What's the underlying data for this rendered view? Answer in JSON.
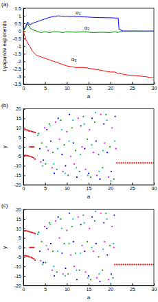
{
  "chart_data": [
    {
      "type": "line",
      "title": "(a)",
      "x_label": "a",
      "y_label": "Lyapunov exponents",
      "xlim": [
        0,
        30
      ],
      "ylim": [
        -3.5,
        1.5
      ],
      "xticks": [
        0,
        5,
        10,
        15,
        20,
        25,
        30
      ],
      "yticks": [
        -3.5,
        -3,
        -2.5,
        -2,
        -1.5,
        -1,
        -0.5,
        0,
        0.5,
        1,
        1.5
      ],
      "x": [
        0,
        0.5,
        1,
        1.5,
        2,
        3,
        4,
        5,
        6,
        7,
        8,
        9,
        10,
        12,
        14,
        16,
        18,
        20,
        21,
        21.8,
        22,
        23,
        24,
        26,
        28,
        30
      ],
      "series": [
        {
          "color": "#0000ff",
          "values": [
            0,
            0.3,
            0.6,
            0.4,
            0.5,
            0.6,
            0.7,
            0.8,
            0.9,
            0.95,
            1.0,
            0.98,
            0.97,
            0.95,
            0.93,
            0.9,
            0.88,
            0.87,
            0.86,
            0.85,
            0.1,
            0.0,
            0.0,
            0.0,
            0.0,
            0.0
          ]
        },
        {
          "color": "#008000",
          "values": [
            0,
            0.2,
            0.5,
            0.2,
            0.1,
            0.0,
            -0.1,
            -0.05,
            -0.1,
            -0.05,
            -0.05,
            -0.1,
            -0.05,
            -0.08,
            -0.05,
            -0.1,
            -0.08,
            -0.1,
            -0.05,
            -0.1,
            -0.05,
            -0.02,
            0.0,
            0.0,
            -0.01,
            0.0
          ]
        },
        {
          "color": "#ff0000",
          "values": [
            0,
            -0.5,
            -0.8,
            -1.0,
            -1.3,
            -1.6,
            -1.7,
            -1.8,
            -1.9,
            -2.0,
            -2.1,
            -2.2,
            -2.3,
            -2.4,
            -2.4,
            -2.5,
            -2.6,
            -2.7,
            -2.7,
            -2.8,
            -2.8,
            -2.85,
            -2.9,
            -2.95,
            -3.0,
            -3.1
          ]
        }
      ],
      "annotations": [
        {
          "text": "α₁",
          "x": 12,
          "y": 1.1
        },
        {
          "text": "α₂",
          "x": 14,
          "y": 0.1
        },
        {
          "text": "α₃",
          "x": 11,
          "y": -2.0
        }
      ]
    },
    {
      "type": "scatter",
      "title": "(b)",
      "x_label": "a",
      "y_label": "y",
      "xlim": [
        0,
        30
      ],
      "ylim": [
        -20,
        20
      ],
      "xticks": [
        0,
        5,
        10,
        15,
        20,
        25,
        30
      ],
      "yticks": [
        -20,
        -15,
        -10,
        -5,
        0,
        5,
        10,
        15,
        20
      ],
      "marker": "dot",
      "series": [
        {
          "color": "#ff0000",
          "x": [
            0.3,
            0.6,
            0.9,
            1.2,
            1.5,
            1.8,
            2.1,
            2.4,
            2.7,
            1.5,
            1.8,
            2.1,
            2.4,
            0.3,
            0.6,
            0.9,
            1.2,
            1.5,
            1.8,
            2.1,
            2.4,
            2.7,
            21.5,
            22,
            22.5,
            23,
            23.5,
            24,
            24.5,
            25,
            25.5,
            26,
            26.5,
            27,
            27.5,
            28,
            28.5,
            29,
            29.5,
            30
          ],
          "values": [
            9,
            9,
            8.8,
            8.5,
            8.3,
            8.2,
            8,
            7.8,
            7.5,
            0,
            0,
            0,
            0,
            -4.5,
            -4.5,
            -4.7,
            -4.8,
            -5,
            -5.2,
            -5.5,
            -5.8,
            -6.5,
            -8.5,
            -8.5,
            -8.5,
            -8.5,
            -8.5,
            -8.5,
            -8.5,
            -8.5,
            -8.5,
            -8.5,
            -8.5,
            -8.5,
            -8.5,
            -8.5,
            -8.5,
            -8.5,
            -8.5,
            -8.5
          ]
        },
        {
          "color": "#00a000",
          "x": [
            3.5,
            4.2,
            5.1,
            6,
            6.8,
            7.7,
            8.6,
            9.4,
            10.3,
            11.2,
            12,
            12.9,
            13.8,
            14.7,
            15.5,
            16.4,
            17.3,
            18.2,
            19,
            19.9,
            20.8
          ],
          "values": [
            7,
            2,
            -9,
            12,
            -3,
            -12,
            14,
            1,
            -15,
            10,
            -2,
            -13,
            16,
            4,
            -16,
            13,
            -4,
            -11,
            17,
            0,
            -17
          ]
        },
        {
          "color": "#0000ff",
          "x": [
            3.8,
            4.6,
            5.4,
            6.3,
            7.1,
            8,
            8.9,
            9.7,
            10.6,
            11.5,
            12.3,
            13.2,
            14.1,
            15,
            15.8,
            16.7,
            17.6,
            18.5,
            19.3,
            20.2,
            21.1
          ],
          "values": [
            -1,
            -7,
            9,
            3,
            -14,
            15,
            -4,
            -10,
            17,
            2,
            -16,
            11,
            -1,
            -14,
            15,
            3,
            -17,
            12,
            -3,
            -13,
            16
          ]
        },
        {
          "color": "#ff00ff",
          "x": [
            4,
            4.9,
            5.7,
            6.6,
            7.4,
            8.3,
            9.1,
            10,
            10.9,
            11.7,
            12.6,
            13.5,
            14.3,
            15.2,
            16.1,
            16.9,
            17.8,
            18.7,
            19.6,
            20.4,
            21.3
          ],
          "values": [
            -8,
            10,
            -2,
            -11,
            13,
            4,
            -13,
            8,
            -5,
            -9,
            15,
            0,
            -12,
            9,
            -3,
            -15,
            17,
            2,
            -16,
            10,
            -1
          ]
        },
        {
          "color": "#00c0c0",
          "x": [
            3.3,
            4.4,
            5.3,
            6.2,
            7,
            7.9,
            8.8,
            9.6,
            10.5,
            11.4,
            12.2,
            13.1,
            14,
            14.8,
            15.7,
            16.6,
            17.4,
            18.3,
            19.2,
            20.1,
            21
          ],
          "values": [
            6,
            -10,
            0,
            11,
            -9,
            -1,
            9,
            -14,
            3,
            14,
            -11,
            -4,
            12,
            -15,
            1,
            18,
            -13,
            -2,
            14,
            -18,
            3
          ]
        }
      ]
    },
    {
      "type": "scatter",
      "title": "(c)",
      "x_label": "a",
      "y_label": "y",
      "xlim": [
        0,
        30
      ],
      "ylim": [
        -20,
        20
      ],
      "xticks": [
        0,
        5,
        10,
        15,
        20,
        25,
        30
      ],
      "yticks": [
        -20,
        -15,
        -10,
        -5,
        0,
        5,
        10,
        15,
        20
      ],
      "marker": "dot",
      "series": [
        {
          "color": "#ff0000",
          "x": [
            0.3,
            0.6,
            0.9,
            1.2,
            1.5,
            1.8,
            2.1,
            2.4,
            2.7,
            1.5,
            1.8,
            2.1,
            2.4,
            0.3,
            0.6,
            0.9,
            1.2,
            1.5,
            1.8,
            2.1,
            2.4,
            2.7,
            21,
            21.5,
            22,
            22.5,
            23,
            23.5,
            24,
            24.5,
            25,
            25.5,
            26,
            26.5,
            27,
            27.5,
            28,
            28.5,
            29,
            29.5,
            30
          ],
          "values": [
            8.8,
            8.8,
            8.6,
            8.4,
            8.2,
            8,
            7.8,
            7.6,
            7.3,
            0,
            0,
            0,
            0,
            -4.3,
            -4.4,
            -4.6,
            -4.8,
            -5,
            -5.3,
            -5.6,
            -6,
            -6.7,
            -9,
            -9,
            -9,
            -9,
            -9,
            -9,
            -9,
            -9,
            -9,
            -9,
            -9,
            -9,
            -9,
            -9,
            -9,
            -9,
            -9,
            -9,
            -9
          ]
        },
        {
          "color": "#00a000",
          "x": [
            3.5,
            4.2,
            5.1,
            6,
            6.8,
            7.7,
            8.6,
            9.4,
            10.3,
            11.2,
            12,
            12.9,
            13.8,
            14.7,
            15.5,
            16.4,
            17.3,
            18.2,
            19,
            19.9,
            20.6
          ],
          "values": [
            8,
            3,
            -8,
            13,
            -2,
            -13,
            15,
            2,
            -14,
            11,
            -3,
            -12,
            17,
            3,
            -17,
            14,
            -5,
            -12,
            18,
            1,
            -16
          ]
        },
        {
          "color": "#0000ff",
          "x": [
            3.8,
            4.6,
            5.4,
            6.3,
            7.1,
            8,
            8.9,
            9.7,
            10.6,
            11.5,
            12.3,
            13.2,
            14.1,
            15,
            15.8,
            16.7,
            17.6,
            18.5,
            19.3,
            20.2,
            20.9
          ],
          "values": [
            -2,
            -8,
            10,
            2,
            -15,
            16,
            -3,
            -11,
            18,
            3,
            -17,
            12,
            -2,
            -15,
            16,
            2,
            -18,
            13,
            -4,
            -14,
            17
          ]
        },
        {
          "color": "#ff00ff",
          "x": [
            4,
            4.9,
            5.7,
            6.6,
            7.4,
            8.3,
            9.1,
            10,
            10.9,
            11.7,
            12.6,
            13.5,
            14.3,
            15.2,
            16.1,
            16.9,
            17.8,
            18.7,
            19.6,
            20.4,
            20.8
          ],
          "values": [
            -7,
            11,
            -1,
            -12,
            14,
            5,
            -14,
            9,
            -4,
            -10,
            16,
            1,
            -13,
            10,
            -2,
            -16,
            18,
            3,
            -17,
            11,
            0
          ]
        },
        {
          "color": "#00c0c0",
          "x": [
            3.3,
            4.4,
            5.3,
            6.2,
            7,
            7.9,
            8.8,
            9.6,
            10.5,
            11.4,
            12.2,
            13.1,
            14,
            14.8,
            15.7,
            16.6,
            17.4,
            18.3,
            19.2,
            20.1,
            20.7
          ],
          "values": [
            7,
            -9,
            1,
            12,
            -10,
            -2,
            10,
            -15,
            2,
            15,
            -12,
            -3,
            13,
            -16,
            0,
            19,
            -14,
            -1,
            15,
            -19,
            2
          ]
        }
      ]
    }
  ]
}
